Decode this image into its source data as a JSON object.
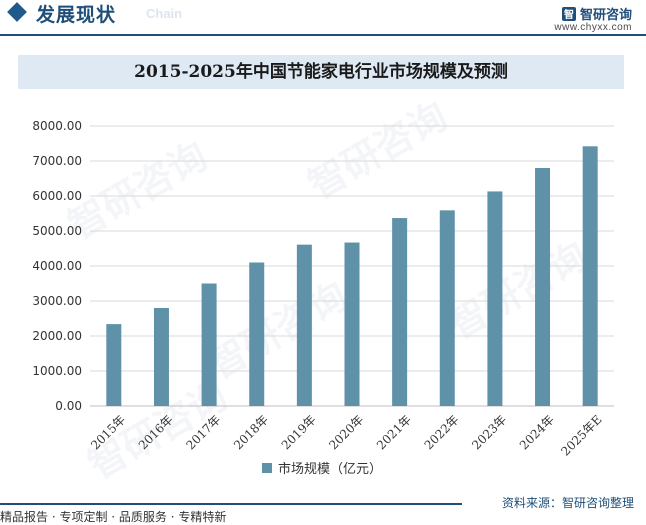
{
  "header": {
    "title": "发展现状",
    "subtitle_en": "Chain",
    "brand_name": "智研咨询",
    "brand_logo_glyph": "智",
    "brand_url": "www.chyxx.com"
  },
  "watermark_text": "智研咨询",
  "chart_data": {
    "type": "bar",
    "title": "2015-2025年中国节能家电行业市场规模及预测",
    "categories": [
      "2015年",
      "2016年",
      "2017年",
      "2018年",
      "2019年",
      "2020年",
      "2021年",
      "2022年",
      "2023年",
      "2024年",
      "2025年E"
    ],
    "series": [
      {
        "name": "市场规模（亿元）",
        "values": [
          2340,
          2800,
          3500,
          4100,
          4610,
          4670,
          5370,
          5590,
          6130,
          6800,
          7420
        ]
      }
    ],
    "ylim": [
      0,
      8000
    ],
    "yticks": [
      "0.00",
      "1000.00",
      "2000.00",
      "3000.00",
      "4000.00",
      "5000.00",
      "6000.00",
      "7000.00",
      "8000.00"
    ],
    "xlabel": "",
    "ylabel": "",
    "grid": true,
    "legend_position": "bottom",
    "bar_color": "#5f91a8"
  },
  "footer": {
    "left_text": "精品报告 · 专项定制 · 品质服务 · 专精特新",
    "source_text": "资料来源：智研咨询整理"
  }
}
